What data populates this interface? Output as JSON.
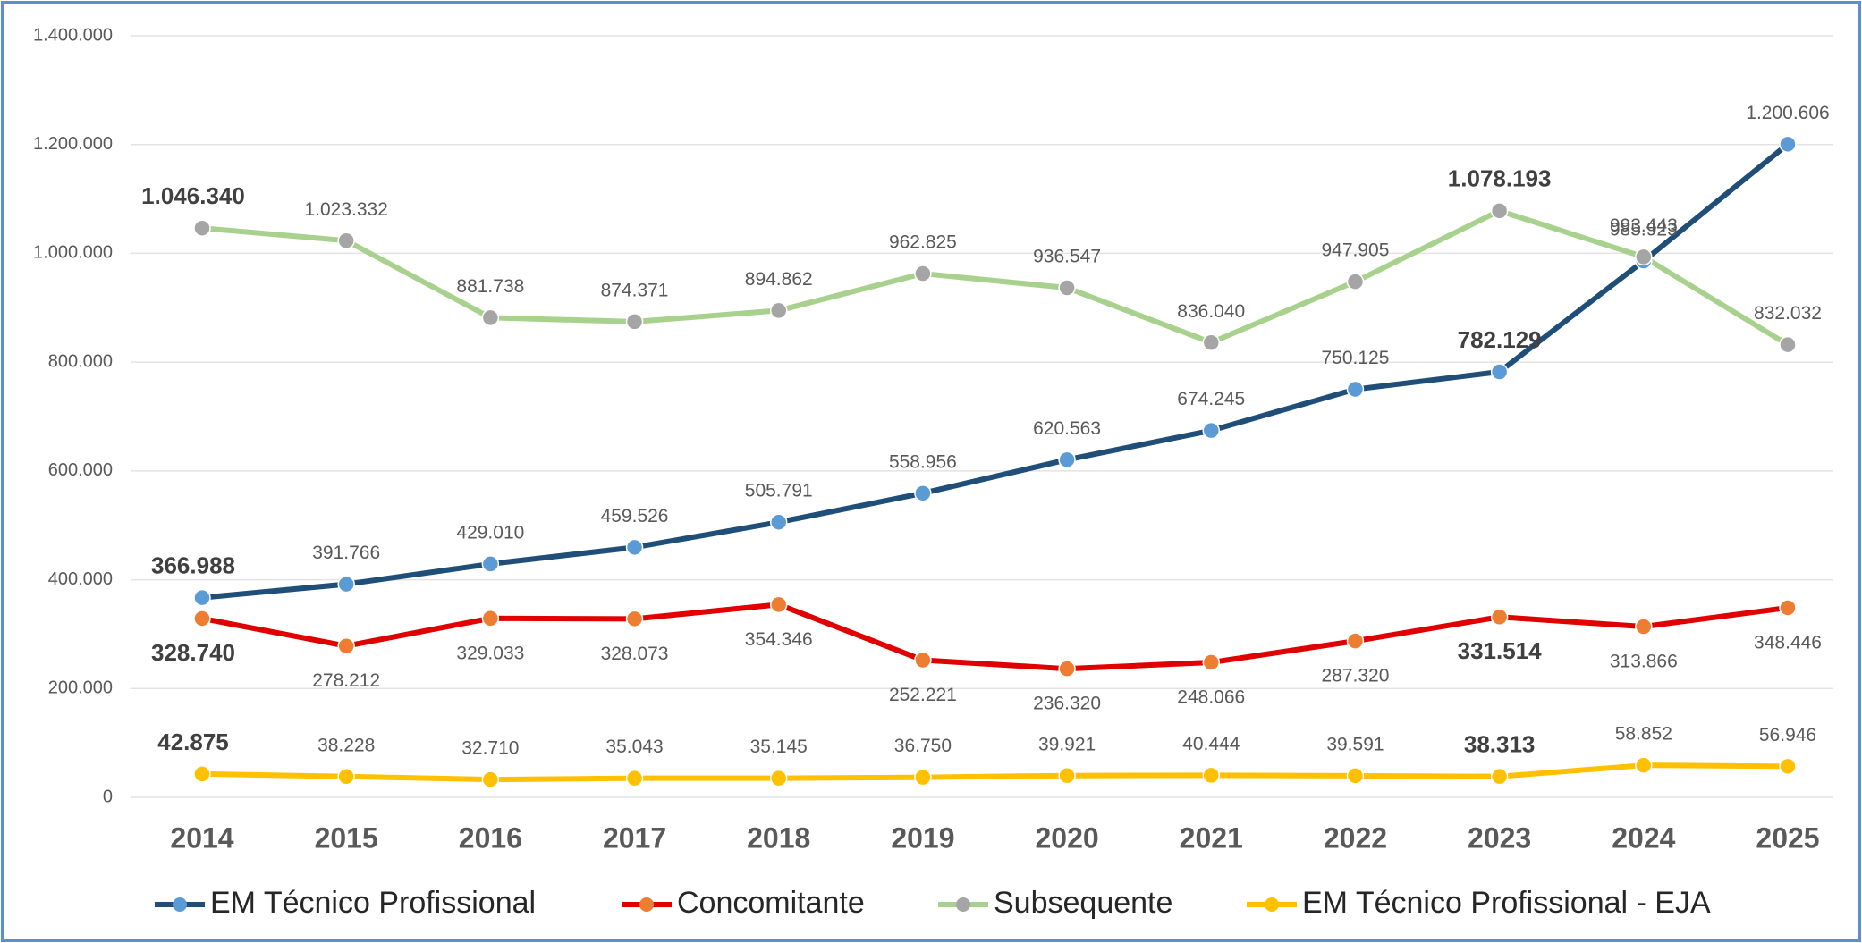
{
  "chart_data": {
    "type": "line",
    "categories": [
      "2014",
      "2015",
      "2016",
      "2017",
      "2018",
      "2019",
      "2020",
      "2021",
      "2022",
      "2023",
      "2024",
      "2025"
    ],
    "series": [
      {
        "name": "EM Técnico Profissional",
        "color": "#1f4e79",
        "marker_color": "#5b9bd5",
        "label_position": "above",
        "values": [
          366988,
          391766,
          429010,
          459526,
          505791,
          558956,
          620563,
          674245,
          750125,
          782129,
          985923,
          1200606
        ],
        "value_labels": [
          "366.988",
          "391.766",
          "429.010",
          "459.526",
          "505.791",
          "558.956",
          "620.563",
          "674.245",
          "750.125",
          "782.129",
          "985.923",
          "1.200.606"
        ]
      },
      {
        "name": "Concomitante",
        "color": "#e00000",
        "marker_color": "#ed7d31",
        "label_position": "below",
        "values": [
          328740,
          278212,
          329033,
          328073,
          354346,
          252221,
          236320,
          248066,
          287320,
          331514,
          313866,
          348446
        ],
        "value_labels": [
          "328.740",
          "278.212",
          "329.033",
          "328.073",
          "354.346",
          "252.221",
          "236.320",
          "248.066",
          "287.320",
          "331.514",
          "313.866",
          "348.446"
        ]
      },
      {
        "name": "Subsequente",
        "color": "#a9d18e",
        "marker_color": "#a5a5a5",
        "label_position": "above",
        "values": [
          1046340,
          1023332,
          881738,
          874371,
          894862,
          962825,
          936547,
          836040,
          947905,
          1078193,
          993443,
          832032
        ],
        "value_labels": [
          "1.046.340",
          "1.023.332",
          "881.738",
          "874.371",
          "894.862",
          "962.825",
          "936.547",
          "836.040",
          "947.905",
          "1.078.193",
          "993.443",
          "832.032"
        ]
      },
      {
        "name": "EM Técnico Profissional - EJA",
        "color": "#ffc000",
        "marker_color": "#ffc000",
        "label_position": "above",
        "values": [
          42875,
          38228,
          32710,
          35043,
          35145,
          36750,
          39921,
          40444,
          39591,
          38313,
          58852,
          56946
        ],
        "value_labels": [
          "42.875",
          "38.228",
          "32.710",
          "35.043",
          "35.145",
          "36.750",
          "39.921",
          "40.444",
          "39.591",
          "38.313",
          "58.852",
          "56.946"
        ]
      }
    ],
    "bold_label_indices": [
      0,
      9
    ],
    "ylim": [
      0,
      1400000
    ],
    "yticks": [
      0,
      {
        "value": 200000,
        "label": "200.000"
      },
      {
        "value": 400000,
        "label": "400.000"
      },
      {
        "value": 600000,
        "label": "600.000"
      },
      {
        "value": 800000,
        "label": "800.000"
      },
      {
        "value": 1000000,
        "label": "1.000.000"
      },
      {
        "value": 1200000,
        "label": "1.200.000"
      },
      {
        "value": 1400000,
        "label": "1.400.000"
      }
    ],
    "grid": true,
    "legend": "bottom"
  }
}
